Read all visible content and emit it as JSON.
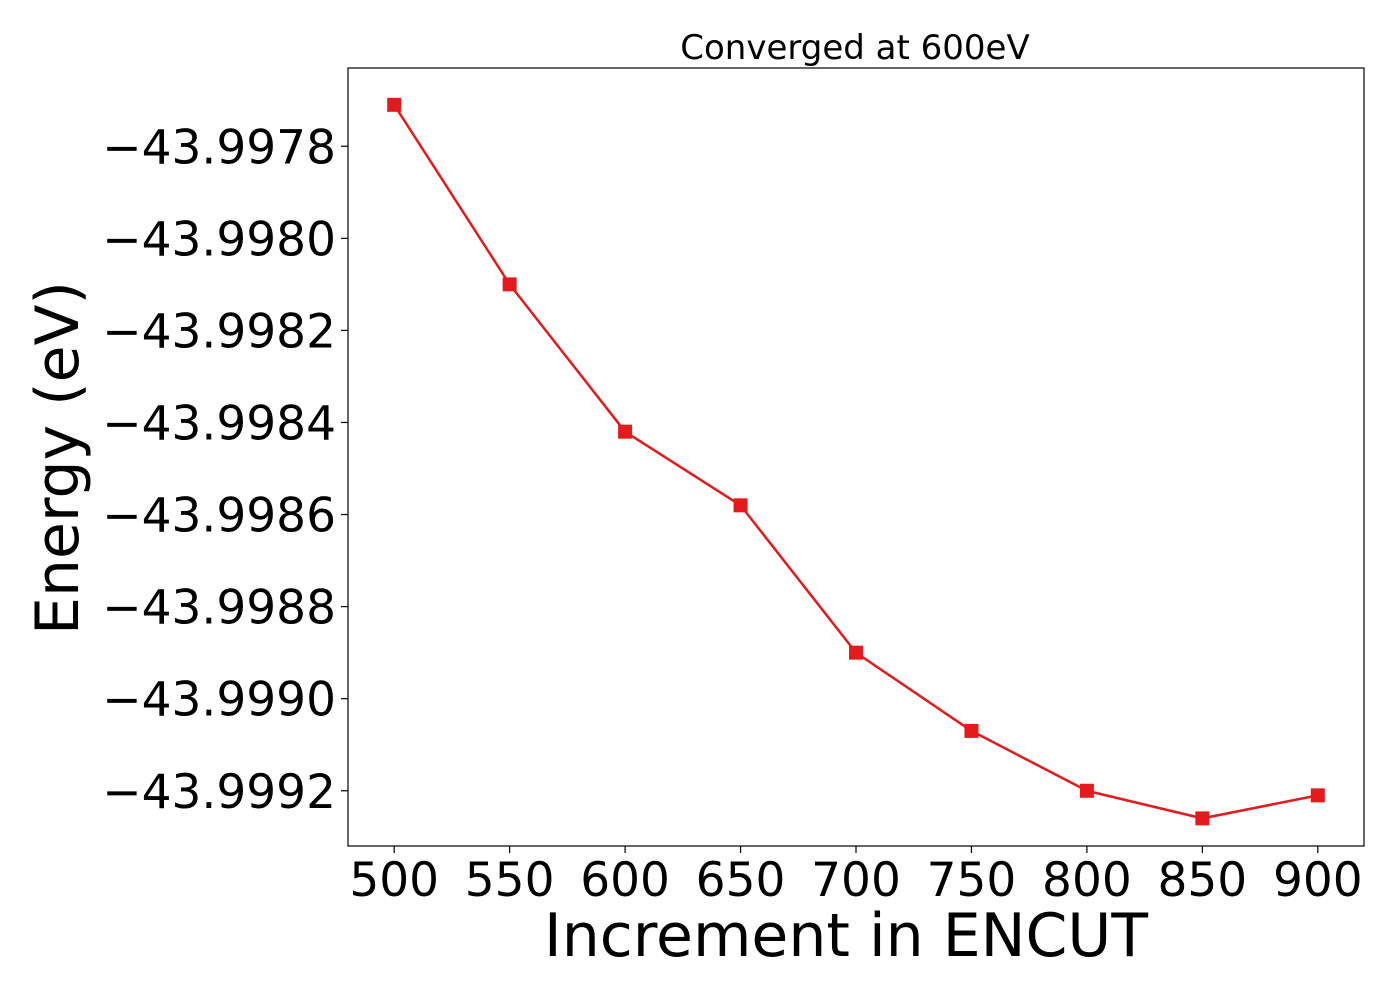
{
  "chart_data": {
    "type": "line",
    "title": "Converged at 600eV",
    "xlabel": "Increment in ENCUT",
    "ylabel": "Energy (eV)",
    "x": [
      500,
      550,
      600,
      650,
      700,
      750,
      800,
      850,
      900
    ],
    "series": [
      {
        "values": [
          -43.99771,
          -43.9981,
          -43.99842,
          -43.99858,
          -43.9989,
          -43.99907,
          -43.9992,
          -43.99926,
          -43.99921
        ],
        "color": "#e41a1c",
        "marker": "square"
      }
    ],
    "x_ticks": [
      500,
      550,
      600,
      650,
      700,
      750,
      800,
      850,
      900
    ],
    "x_tick_labels": [
      "500",
      "550",
      "600",
      "650",
      "700",
      "750",
      "800",
      "850",
      "900"
    ],
    "y_ticks": [
      -43.9978,
      -43.998,
      -43.9982,
      -43.9984,
      -43.9986,
      -43.9988,
      -43.999,
      -43.9992
    ],
    "y_tick_labels": [
      "−43.9978",
      "−43.9980",
      "−43.9982",
      "−43.9984",
      "−43.9986",
      "−43.9988",
      "−43.9990",
      "−43.9992"
    ],
    "xlim": [
      480,
      920
    ],
    "ylim": [
      -43.99932,
      -43.99763
    ],
    "grid": false,
    "legend": "none"
  }
}
